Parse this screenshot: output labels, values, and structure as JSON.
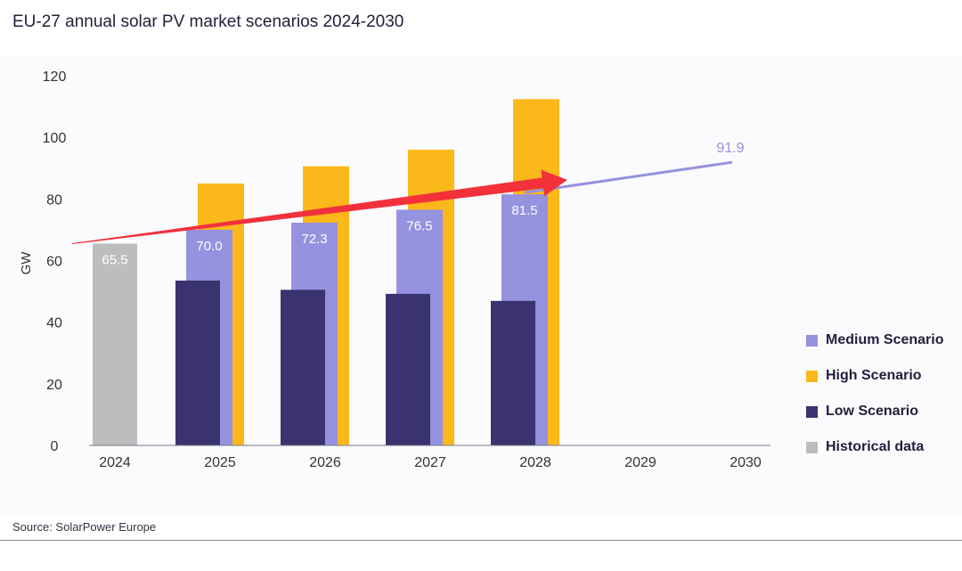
{
  "title": "EU-27 annual solar PV market scenarios 2024-2030",
  "source": "Source: SolarPower Europe",
  "colors": {
    "historical": "#bdbdbd",
    "low": "#3a336f",
    "medium": "#9592e0",
    "high": "#fbb81a",
    "arrow": "#f2313b",
    "trend": "#9592e0"
  },
  "legend": [
    {
      "label": "Medium Scenario",
      "color": "#9592e0"
    },
    {
      "label": "High Scenario",
      "color": "#fbb81a"
    },
    {
      "label": "Low Scenario",
      "color": "#3a336f"
    },
    {
      "label": "Historical data",
      "color": "#bdbdbd"
    }
  ],
  "chart_data": {
    "type": "bar",
    "title": "EU-27 annual solar PV market scenarios 2024-2030",
    "xlabel": "",
    "ylabel": "GW",
    "ylim": [
      0,
      120
    ],
    "yticks": [
      0,
      20,
      40,
      60,
      80,
      100,
      120
    ],
    "categories": [
      "2024",
      "2025",
      "2026",
      "2027",
      "2028",
      "2029",
      "2030"
    ],
    "grid": false,
    "legend_position": "right",
    "series": [
      {
        "name": "Historical data",
        "values": [
          65.5,
          null,
          null,
          null,
          null,
          null,
          null
        ],
        "labels": [
          "65.5",
          null,
          null,
          null,
          null,
          null,
          null
        ]
      },
      {
        "name": "Low Scenario",
        "values": [
          null,
          53.5,
          50.5,
          49.2,
          46.9,
          null,
          null
        ]
      },
      {
        "name": "Medium Scenario",
        "values": [
          null,
          70.0,
          72.3,
          76.5,
          81.5,
          null,
          null
        ],
        "labels": [
          null,
          "70.0",
          "72.3",
          "76.5",
          "81.5",
          null,
          null
        ]
      },
      {
        "name": "High Scenario",
        "values": [
          null,
          85.0,
          90.6,
          96.0,
          112.4,
          null,
          null
        ]
      }
    ],
    "trend_line": {
      "x": [
        "2028",
        "2030"
      ],
      "y": [
        81.5,
        91.9
      ],
      "label": "91.9"
    },
    "arrow": {
      "from": {
        "x": "2024",
        "y": 65.5
      },
      "to": {
        "x": "2028",
        "y": 91.9
      }
    }
  }
}
